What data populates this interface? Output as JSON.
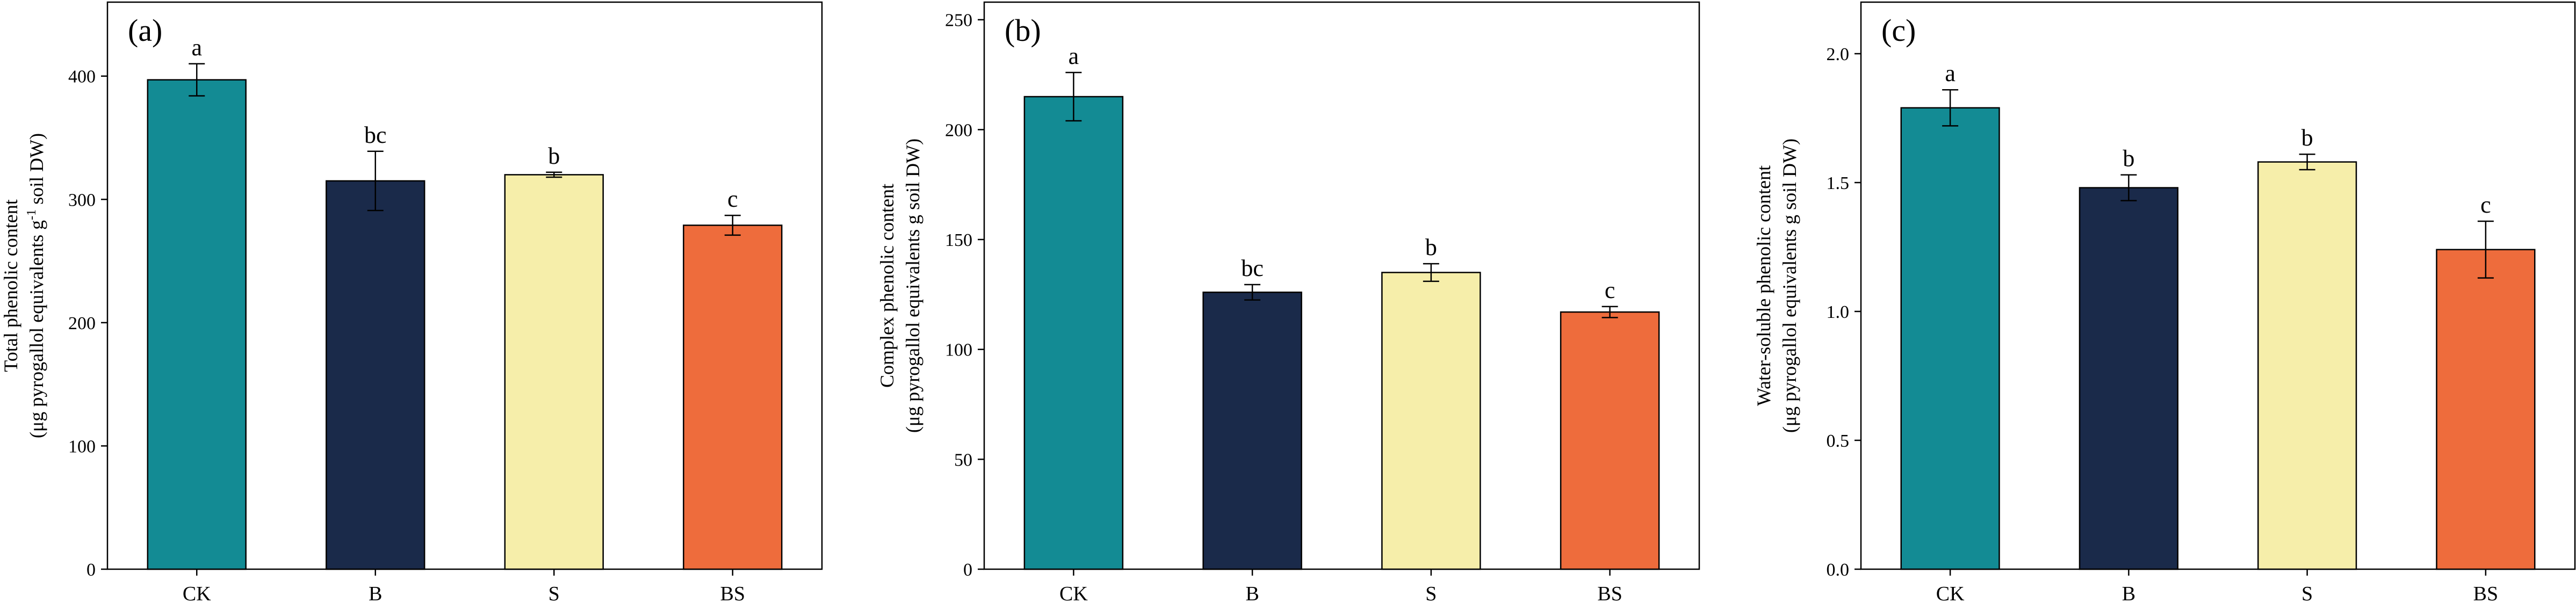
{
  "chart_data": [
    {
      "type": "bar",
      "panel_label": "(a)",
      "categories": [
        "CK",
        "B",
        "S",
        "BS"
      ],
      "values": [
        397,
        315,
        320,
        279
      ],
      "errors": [
        13,
        24,
        2,
        8
      ],
      "significance": [
        "a",
        "bc",
        "b",
        "c"
      ],
      "ylabel_line1": "Total phenolic content",
      "ylabel_line2": "(μg pyrogallol equivalents g",
      "ylabel_sup": "-1",
      "ylabel_line2_end": " soil DW)",
      "ylim": [
        0,
        460
      ],
      "yticks": [
        0,
        100,
        200,
        300,
        400
      ],
      "ytick_labels": [
        "0",
        "100",
        "200",
        "300",
        "400"
      ],
      "grid": false,
      "legend": "none"
    },
    {
      "type": "bar",
      "panel_label": "(b)",
      "categories": [
        "CK",
        "B",
        "S",
        "BS"
      ],
      "values": [
        215,
        126,
        135,
        117
      ],
      "errors": [
        11,
        3.5,
        4,
        2.5
      ],
      "significance": [
        "a",
        "bc",
        "b",
        "c"
      ],
      "ylabel_line1": "Complex phenolic content",
      "ylabel_line2": "(μg pyrogallol equivalents g soil DW)",
      "ylim": [
        0,
        258
      ],
      "yticks": [
        0,
        50,
        100,
        150,
        200,
        250
      ],
      "ytick_labels": [
        "0",
        "50",
        "100",
        "150",
        "200",
        "250"
      ],
      "grid": false,
      "legend": "none"
    },
    {
      "type": "bar",
      "panel_label": "(c)",
      "categories": [
        "CK",
        "B",
        "S",
        "BS"
      ],
      "values": [
        1.79,
        1.48,
        1.58,
        1.24
      ],
      "errors": [
        0.07,
        0.05,
        0.03,
        0.11
      ],
      "significance": [
        "a",
        "b",
        "b",
        "c"
      ],
      "ylabel_line1": "Water-soluble phenolic content",
      "ylabel_line2": "(μg pyrogallol equivalents g soil DW)",
      "ylim": [
        0,
        2.2
      ],
      "yticks": [
        0,
        0.5,
        1.0,
        1.5,
        2.0
      ],
      "ytick_labels": [
        "0.0",
        "0.5",
        "1.0",
        "1.5",
        "2.0"
      ],
      "grid": false,
      "legend": "none"
    }
  ],
  "colors": {
    "CK": "#138b94",
    "B": "#1a2a4a",
    "S": "#f6eeaa",
    "BS": "#ee6c3c"
  }
}
